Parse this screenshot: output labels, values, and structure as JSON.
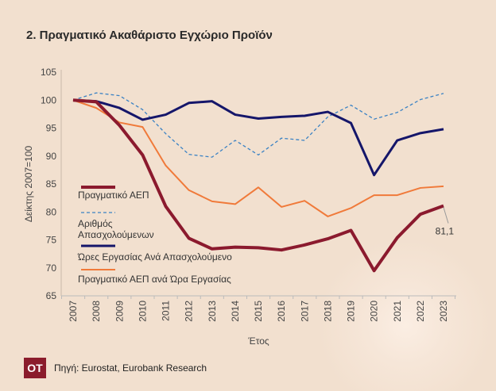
{
  "title": "2. Πραγματικό Ακαθάριστο Εγχώριο Προϊόν",
  "source": "Πηγή: Eurostat, Eurobank Research",
  "logo": "OT",
  "chart_data": {
    "type": "line",
    "xlabel": "Έτος",
    "ylabel": "Δείκτης 2007=100",
    "ylim": [
      65,
      105
    ],
    "yticks": [
      65,
      70,
      75,
      80,
      85,
      90,
      95,
      100,
      105
    ],
    "x": [
      "2007",
      "2008",
      "2009",
      "2010",
      "2011",
      "2012",
      "2013",
      "2014",
      "2015",
      "2016",
      "2017",
      "2018",
      "2019",
      "2020",
      "2021",
      "2022",
      "2023"
    ],
    "legend_position": "left-middle",
    "series": [
      {
        "name": "Πραγματικό ΑΕΠ",
        "color": "#8b1a2e",
        "style": "solid-thick",
        "values": [
          100,
          99.7,
          95.5,
          90.2,
          81,
          75.3,
          73.4,
          73.7,
          73.6,
          73.2,
          74.1,
          75.2,
          76.7,
          69.5,
          75.4,
          79.6,
          81.1
        ]
      },
      {
        "name": "Αριθμός Απασχολούμενων",
        "color": "#3b82c4",
        "style": "dashed",
        "values": [
          100,
          101.3,
          100.8,
          98.3,
          94,
          90.3,
          89.8,
          92.8,
          90.2,
          93.2,
          92.8,
          97,
          99.1,
          96.6,
          97.8,
          100.1,
          101.2
        ]
      },
      {
        "name": "Ώρες Εργασίας Ανά Απασχολούμενο",
        "color": "#15166a",
        "style": "solid",
        "values": [
          100,
          99.8,
          98.6,
          96.5,
          97.4,
          99.5,
          99.8,
          97.4,
          96.7,
          97.0,
          97.2,
          97.9,
          95.9,
          86.6,
          92.8,
          94.1,
          94.8
        ]
      },
      {
        "name": "Πραγματικό ΑΕΠ ανά Ώρα Εργασίας",
        "color": "#f07a3a",
        "style": "solid-thin",
        "values": [
          100,
          98.6,
          96,
          95.2,
          88.3,
          83.9,
          81.9,
          81.4,
          84.4,
          80.9,
          82,
          79.2,
          80.7,
          83,
          83,
          84.3,
          84.6
        ]
      }
    ],
    "legend_lines": [
      [
        "Πραγματικό ΑΕΠ"
      ],
      [
        "Αριθμός",
        "Απασχολούμενων"
      ],
      [
        "Ώρες Εργασίας Ανά Απασχολούμενο"
      ],
      [
        "Πραγματικό ΑΕΠ ανά Ώρα Εργασίας"
      ]
    ],
    "annotation": "81,1"
  }
}
